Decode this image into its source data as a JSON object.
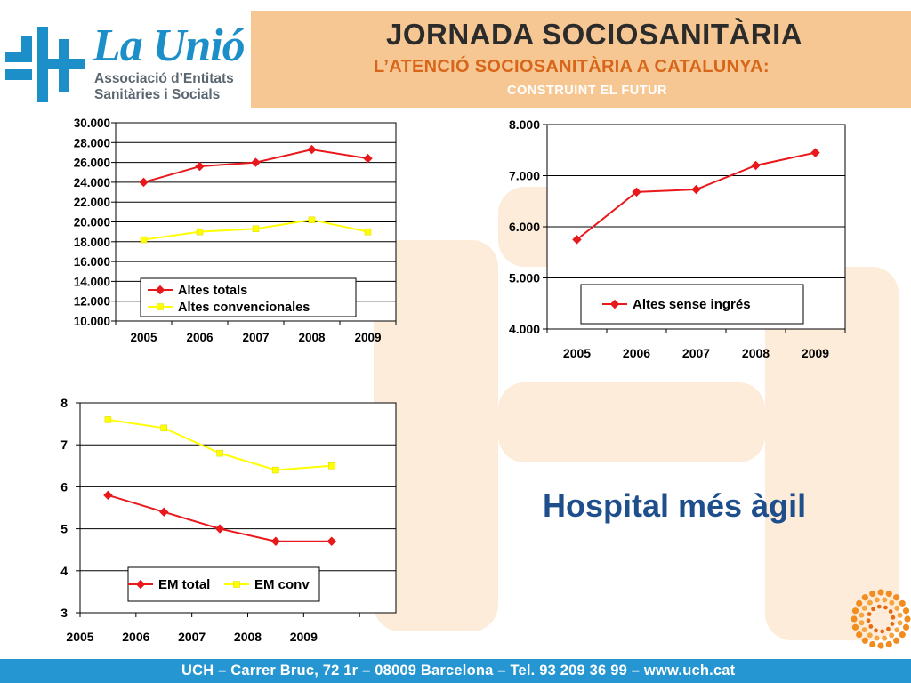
{
  "logo": {
    "name": "La Unió",
    "line1": "Associació d’Entitats",
    "line2": "Sanitàries i Socials"
  },
  "header": {
    "title": "JORNADA SOCIOSANITÀRIA",
    "subtitle": "L’ATENCIÓ SOCIOSANITÀRIA A CATALUNYA:",
    "subtitle2": "CONSTRUINT EL FUTUR"
  },
  "colors": {
    "red": "#e8191c",
    "yellow": "#ffff00",
    "header_band": "#f6c792",
    "footer": "#2596d1",
    "headline": "#1f4e8c"
  },
  "headline": "Hospital més àgil",
  "footer": {
    "text": "UCH – Carrer Bruc, 72 1r – 08009 Barcelona – Tel. 93 209 36 99 – www.uch.cat"
  },
  "chart_data": [
    {
      "type": "line",
      "categories": [
        "2005",
        "2006",
        "2007",
        "2008",
        "2009"
      ],
      "ylim": [
        10000,
        30000
      ],
      "yticks": [
        "10.000",
        "12.000",
        "14.000",
        "16.000",
        "18.000",
        "20.000",
        "22.000",
        "24.000",
        "26.000",
        "28.000",
        "30.000"
      ],
      "series": [
        {
          "name": "Altes totals",
          "color": "#e8191c",
          "marker": "diamond",
          "values": [
            24000,
            25600,
            26000,
            27300,
            26400
          ]
        },
        {
          "name": "Altes convencionales",
          "color": "#ffff00",
          "marker": "square",
          "values": [
            18200,
            19000,
            19300,
            20200,
            19000
          ]
        }
      ],
      "legend": "bottom-left"
    },
    {
      "type": "line",
      "categories": [
        "2005",
        "2006",
        "2007",
        "2008",
        "2009"
      ],
      "ylim": [
        4000,
        8000
      ],
      "yticks": [
        "4.000",
        "5.000",
        "6.000",
        "7.000",
        "8.000"
      ],
      "series": [
        {
          "name": "Altes sense ingrés",
          "color": "#e8191c",
          "marker": "diamond",
          "values": [
            5750,
            6680,
            6730,
            7200,
            7450
          ]
        }
      ],
      "legend": "bottom"
    },
    {
      "type": "line",
      "categories": [
        "2005",
        "2006",
        "2007",
        "2008",
        "2009"
      ],
      "ylim": [
        3,
        8
      ],
      "yticks": [
        "3",
        "4",
        "5",
        "6",
        "7",
        "8"
      ],
      "series": [
        {
          "name": "EM total",
          "color": "#e8191c",
          "marker": "diamond",
          "values": [
            5.8,
            5.4,
            5.0,
            4.7,
            4.7
          ]
        },
        {
          "name": "EM conv",
          "color": "#ffff00",
          "marker": "square",
          "values": [
            7.6,
            7.4,
            6.8,
            6.4,
            6.5
          ]
        }
      ],
      "legend": "bottom"
    }
  ]
}
